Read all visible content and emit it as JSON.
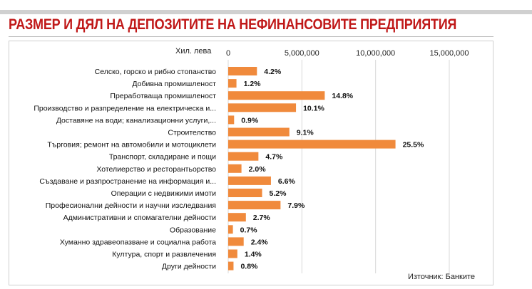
{
  "title": "РАЗМЕР И ДЯЛ НА ДЕПОЗИТИТЕ НА НЕФИНАНСОВИТЕ ПРЕДПРИЯТИЯ",
  "source": "Източник: Банките",
  "colors": {
    "bar": "#f08a3c",
    "title": "#c01818",
    "grid": "#d9d9d9"
  },
  "chart_data": {
    "type": "bar",
    "orientation": "horizontal",
    "unit_label": "Хил. лева",
    "xlim": [
      0,
      15000000
    ],
    "xticks": [
      0,
      5000000,
      10000000,
      15000000
    ],
    "xtick_labels": [
      "0",
      "5,000,000",
      "10,000,000",
      "15,000,000"
    ],
    "grid": true,
    "categories": [
      "Селско, горско и рибно стопанство",
      "Добивна промишленост",
      "Преработваща промишленост",
      "Производство и разпределение на електрическа и...",
      "Доставяне на води; канализационни услуги,...",
      "Строителство",
      "Търговия; ремонт на автомобили и мотоциклети",
      "Транспорт, складиране и пощи",
      "Хотелиерство и ресторантьорство",
      "Създаване и разпространение на информация и...",
      "Операции с недвижими имоти",
      "Професионални дейности и научни изследвания",
      "Административни и спомагателни дейности",
      "Образование",
      "Хуманно здравеопазване и социална работа",
      "Култура, спорт и развлечения",
      "Други дейности"
    ],
    "values": [
      1950000,
      560000,
      6550000,
      4600000,
      400000,
      4150000,
      11350000,
      2050000,
      900000,
      2900000,
      2300000,
      3550000,
      1200000,
      320000,
      1050000,
      620000,
      360000
    ],
    "value_labels": [
      "4.2%",
      "1.2%",
      "14.8%",
      "10.1%",
      "0.9%",
      "9.1%",
      "25.5%",
      "4.7%",
      "2.0%",
      "6.6%",
      "5.2%",
      "7.9%",
      "2.7%",
      "0.7%",
      "2.4%",
      "1.4%",
      "0.8%"
    ]
  }
}
